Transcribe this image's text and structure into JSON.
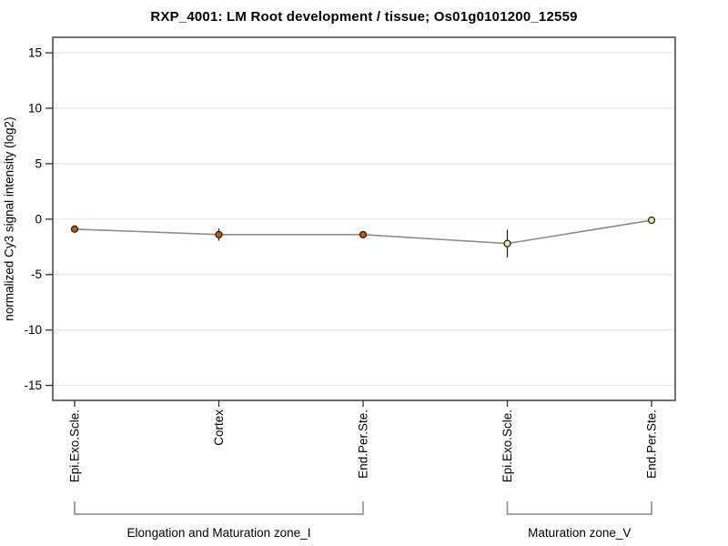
{
  "chart_data": {
    "type": "line",
    "title": "RXP_4001: LM Root development / tissue; Os01g0101200_12559",
    "ylabel": "normalized Cy3 signal intensity (log2)",
    "xlabel": "",
    "categories": [
      "Epi.Exo.Scle.",
      "Cortex",
      "End.Per.Ste.",
      "Epi.Exo.Scle.",
      "End.Per.Ste."
    ],
    "values": [
      -0.9,
      -1.4,
      -1.4,
      -2.2,
      -0.1
    ],
    "errors": [
      0.12,
      0.55,
      0.18,
      1.25,
      0.15
    ],
    "point_colors": [
      "#cc5500",
      "#cc5500",
      "#cc5500",
      "#e8e89a",
      "#e8e89a"
    ],
    "point_border": "#1a1a1a",
    "line_color": "#8c8c8c",
    "yticks": [
      15,
      10,
      5,
      0,
      -5,
      -10,
      -15
    ],
    "ylim": [
      -16.35,
      16.4
    ],
    "grid": "horizontal-only",
    "legend": "none",
    "groups": [
      {
        "label": "Elongation and Maturation zone_I",
        "from": 0,
        "to": 2
      },
      {
        "label": "Maturation zone_V",
        "from": 3,
        "to": 4
      }
    ],
    "colors": {
      "grid": "#e6e6e6",
      "frame": "#444444",
      "tick": "#333333",
      "bracket": "#999999",
      "error_bar": "#1a1a1a",
      "text": "#000000"
    }
  }
}
